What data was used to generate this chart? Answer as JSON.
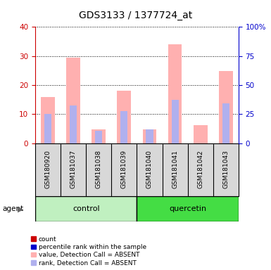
{
  "title": "GDS3133 / 1377724_at",
  "samples": [
    "GSM180920",
    "GSM181037",
    "GSM181038",
    "GSM181039",
    "GSM181040",
    "GSM181041",
    "GSM181042",
    "GSM181043"
  ],
  "group_labels": [
    "control",
    "quercetin"
  ],
  "value_absent": [
    16.0,
    29.5,
    4.8,
    18.2,
    4.8,
    34.0,
    6.2,
    24.8
  ],
  "rank_absent": [
    10.2,
    13.0,
    4.2,
    11.0,
    4.8,
    15.0,
    0.0,
    13.8
  ],
  "ylim_left": [
    0,
    40
  ],
  "ylim_right": [
    0,
    100
  ],
  "yticks_left": [
    0,
    10,
    20,
    30,
    40
  ],
  "yticks_right": [
    0,
    25,
    50,
    75,
    100
  ],
  "ytick_labels_right": [
    "0",
    "25",
    "50",
    "75",
    "100%"
  ],
  "color_value_absent": "#ffb0b0",
  "color_rank_absent": "#b0b0ee",
  "color_left_axis": "#cc0000",
  "color_right_axis": "#0000cc",
  "legend_items": [
    "count",
    "percentile rank within the sample",
    "value, Detection Call = ABSENT",
    "rank, Detection Call = ABSENT"
  ],
  "legend_colors": [
    "#cc0000",
    "#0000cc",
    "#ffb0b0",
    "#b0b0ee"
  ],
  "title_fontsize": 10,
  "tick_fontsize": 7.5,
  "sample_fontsize": 6.5,
  "group_fontsize": 8,
  "legend_fontsize": 6.5,
  "agent_label": "agent",
  "bg_color": "#d8d8d8",
  "ctrl_color": "#c0f0c0",
  "quer_color": "#44dd44",
  "bar_width": 0.55,
  "rank_bar_width": 0.28
}
